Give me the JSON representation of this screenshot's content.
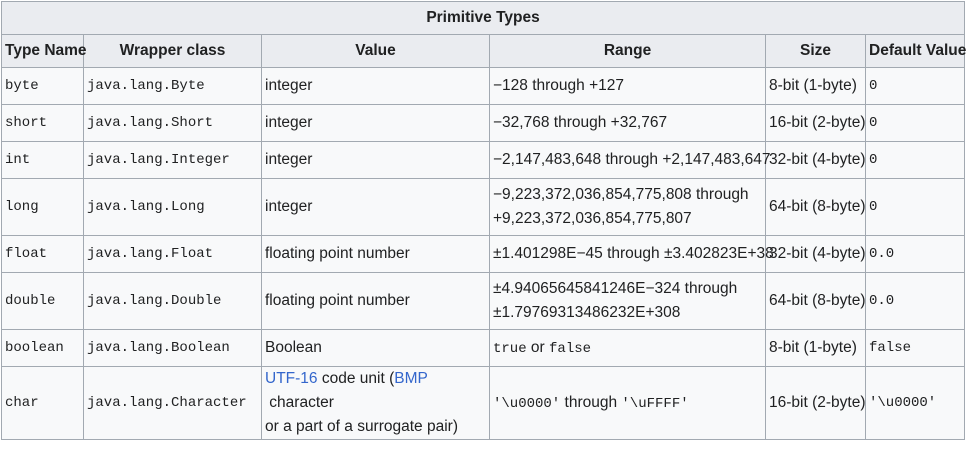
{
  "table": {
    "caption": "Primitive Types",
    "headers": [
      "Type Name",
      "Wrapper class",
      "Value",
      "Range",
      "Size",
      "Default Value"
    ],
    "rows": [
      {
        "type_name": "byte",
        "wrapper": "java.lang.Byte",
        "value": "integer",
        "range": "−128 through +127",
        "size": "8-bit (1-byte)",
        "default": "0"
      },
      {
        "type_name": "short",
        "wrapper": "java.lang.Short",
        "value": "integer",
        "range": "−32,768 through +32,767",
        "size": "16-bit (2-byte)",
        "default": "0"
      },
      {
        "type_name": "int",
        "wrapper": "java.lang.Integer",
        "value": "integer",
        "range": "−2,147,483,648 through +2,147,483,647",
        "size": "32-bit (4-byte)",
        "default": "0"
      },
      {
        "type_name": "long",
        "wrapper": "java.lang.Long",
        "value": "integer",
        "range_line1": "−9,223,372,036,854,775,808 through",
        "range_line2": "+9,223,372,036,854,775,807",
        "size": "64-bit (8-byte)",
        "default": "0"
      },
      {
        "type_name": "float",
        "wrapper": "java.lang.Float",
        "value": "floating point number",
        "range": "±1.401298E−45 through ±3.402823E+38",
        "size": "32-bit (4-byte)",
        "default": "0.0"
      },
      {
        "type_name": "double",
        "wrapper": "java.lang.Double",
        "value": "floating point number",
        "range_line1": "±4.94065645841246E−324 through",
        "range_line2": "±1.79769313486232E+308",
        "size": "64-bit (8-byte)",
        "default": "0.0"
      },
      {
        "type_name": "boolean",
        "wrapper": "java.lang.Boolean",
        "value": "Boolean",
        "range_true": "true",
        "range_or": " or ",
        "range_false": "false",
        "size": "8-bit (1-byte)",
        "default": "false"
      },
      {
        "type_name": "char",
        "wrapper": "java.lang.Character",
        "value_link1": "UTF-16",
        "value_text1": " code unit (",
        "value_link2": "BMP",
        "value_text2": " character",
        "value_line2": "or a part of a surrogate pair)",
        "range_start": "'\\u0000'",
        "range_mid": " through ",
        "range_end": "'\\uFFFF'",
        "size": "16-bit (2-byte)",
        "default": "'\\u0000'"
      }
    ]
  }
}
